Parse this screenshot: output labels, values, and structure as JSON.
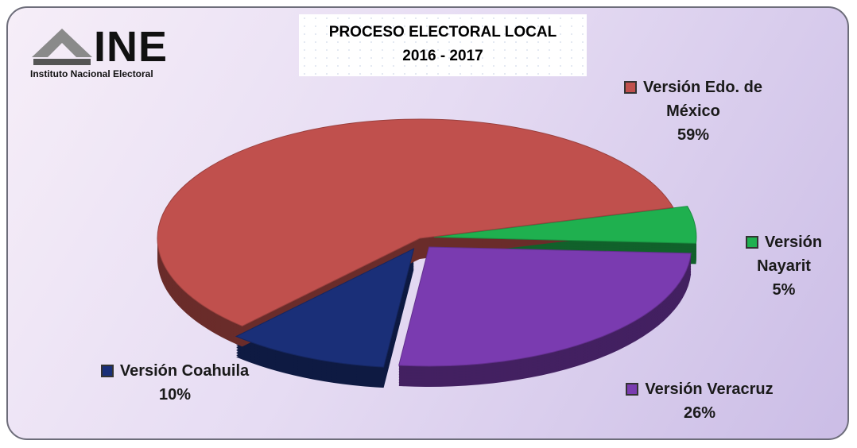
{
  "logo": {
    "text": "INE",
    "caption": "Instituto Nacional Electoral"
  },
  "chart_data": {
    "type": "pie",
    "title": "PROCESO ELECTORAL LOCAL",
    "subtitle": "2016 - 2017",
    "categories": [
      "Versión Nayarit",
      "Versión Veracruz",
      "Versión Coahuila",
      "Versión Edo. de México"
    ],
    "values": [
      5,
      26,
      10,
      59
    ],
    "value_labels": [
      "5%",
      "26%",
      "10%",
      "59%"
    ],
    "colors": [
      "#1fb04f",
      "#7a3bb0",
      "#1a2f78",
      "#c0504d"
    ]
  }
}
